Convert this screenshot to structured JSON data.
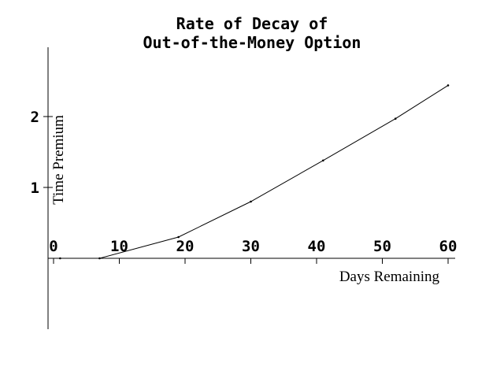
{
  "chart_data": {
    "type": "line",
    "title_lines": [
      "Rate of Decay of",
      "Out-of-the-Money Option"
    ],
    "xlabel": "Days Remaining",
    "ylabel": "Time Premium",
    "xlim": [
      0,
      61
    ],
    "ylim": [
      -1,
      2.45
    ],
    "x_ticks": [
      0,
      10,
      20,
      30,
      40,
      50,
      60
    ],
    "y_ticks": [
      1,
      2
    ],
    "grid": false,
    "series": [
      {
        "x": [
          1,
          7,
          19,
          30,
          41,
          52,
          60
        ],
        "y": [
          0,
          0,
          0.3,
          0.8,
          1.38,
          1.97,
          2.44
        ]
      }
    ]
  }
}
